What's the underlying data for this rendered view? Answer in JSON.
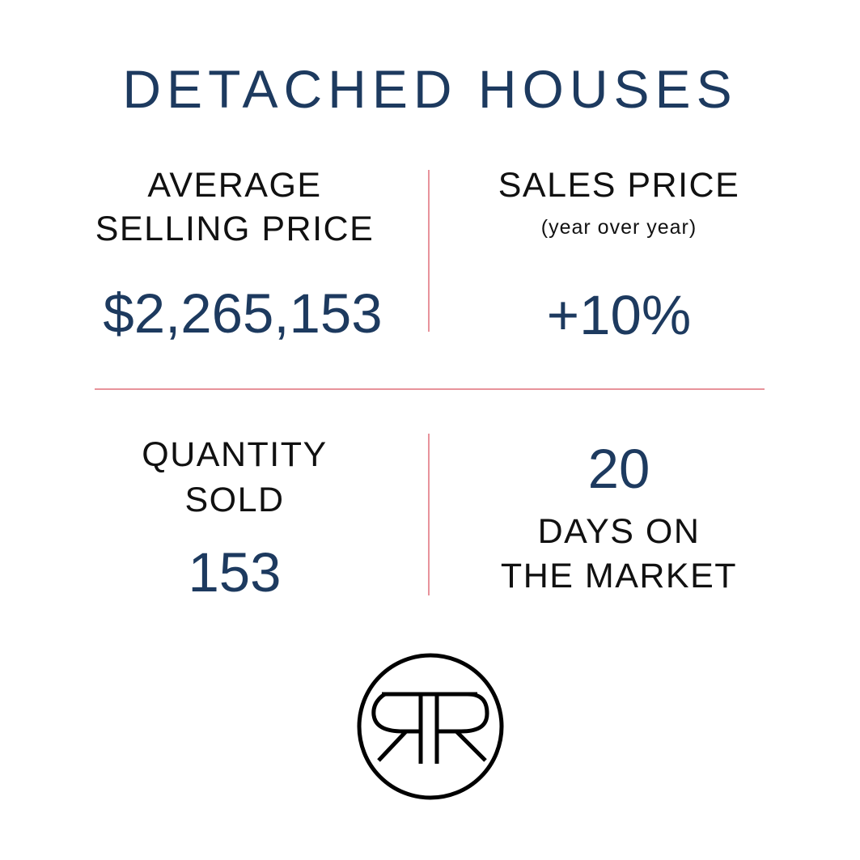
{
  "title": "DETACHED HOUSES",
  "average_selling_price": {
    "label_line1": "AVERAGE",
    "label_line2": "SELLING PRICE",
    "value": "$2,265,153"
  },
  "sales_price": {
    "label": "SALES PRICE",
    "sublabel": "(year over year)",
    "value": "+10%"
  },
  "quantity_sold": {
    "label_line1": "QUANTITY",
    "label_line2": "SOLD",
    "value": "153"
  },
  "days_on_market": {
    "value": "20",
    "label_line1": "DAYS ON",
    "label_line2": "THE MARKET"
  },
  "logo": {
    "icon": "rr-monogram-logo",
    "text": "RR"
  },
  "colors": {
    "navy": "#1d3a5f",
    "text": "#111111",
    "divider": "#e8939b",
    "background": "#ffffff"
  }
}
